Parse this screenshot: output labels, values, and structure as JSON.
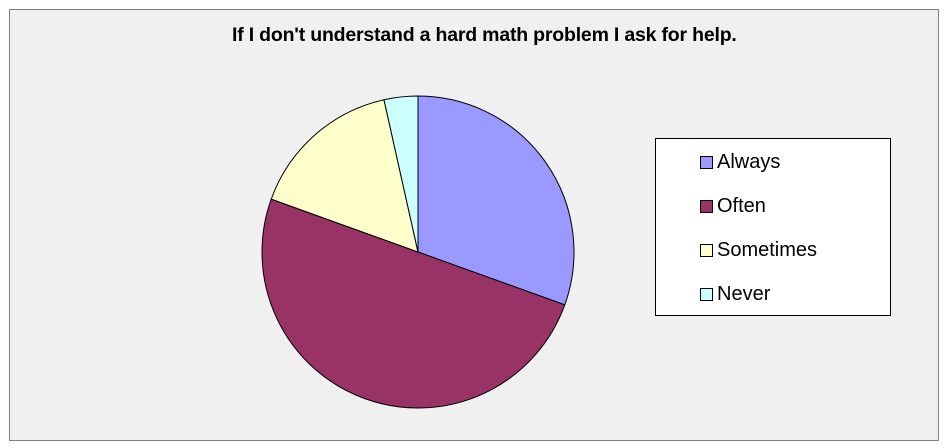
{
  "chart_data": {
    "type": "pie",
    "title": "If I don't understand a hard math problem I ask for help.",
    "categories": [
      "Always",
      "Often",
      "Sometimes",
      "Never"
    ],
    "values": [
      30.5,
      50.0,
      16.0,
      3.5
    ],
    "colors": [
      "#9999ff",
      "#993366",
      "#ffffcc",
      "#ccffff"
    ],
    "legend_position": "right"
  }
}
